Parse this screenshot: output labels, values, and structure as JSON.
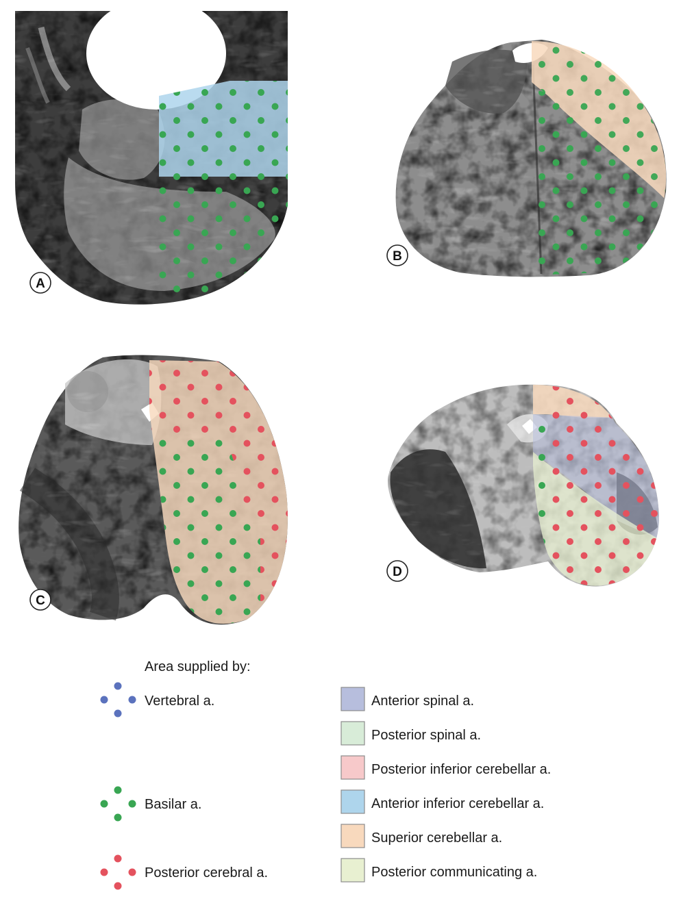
{
  "colors": {
    "vertebral": "#5b72bd",
    "basilar": "#39a653",
    "posterior_cerebral": "#e4525e",
    "anterior_spinal": "#b7bedd",
    "posterior_spinal": "#d8ecd8",
    "posterior_inferior_cerebellar": "#f7c9ca",
    "anterior_inferior_cerebellar": "#aed5ec",
    "superior_cerebellar": "#f8d9bd",
    "posterior_communicating": "#e8f0d1"
  },
  "panels": [
    {
      "letter": "A"
    },
    {
      "letter": "B"
    },
    {
      "letter": "C"
    },
    {
      "letter": "D"
    }
  ],
  "legend": {
    "heading": "Area supplied by:",
    "dot_items": [
      {
        "label": "Vertebral a.",
        "color_key": "vertebral"
      },
      {
        "label": "Basilar a.",
        "color_key": "basilar"
      },
      {
        "label": "Posterior cerebral a.",
        "color_key": "posterior_cerebral"
      }
    ],
    "swatch_items": [
      {
        "label": "Anterior spinal a.",
        "color_key": "anterior_spinal"
      },
      {
        "label": "Posterior spinal a.",
        "color_key": "posterior_spinal"
      },
      {
        "label": "Posterior inferior cerebellar a.",
        "color_key": "posterior_inferior_cerebellar"
      },
      {
        "label": "Anterior inferior cerebellar a.",
        "color_key": "anterior_inferior_cerebellar"
      },
      {
        "label": "Superior cerebellar a.",
        "color_key": "superior_cerebellar"
      },
      {
        "label": "Posterior communicating a.",
        "color_key": "posterior_communicating"
      }
    ]
  }
}
